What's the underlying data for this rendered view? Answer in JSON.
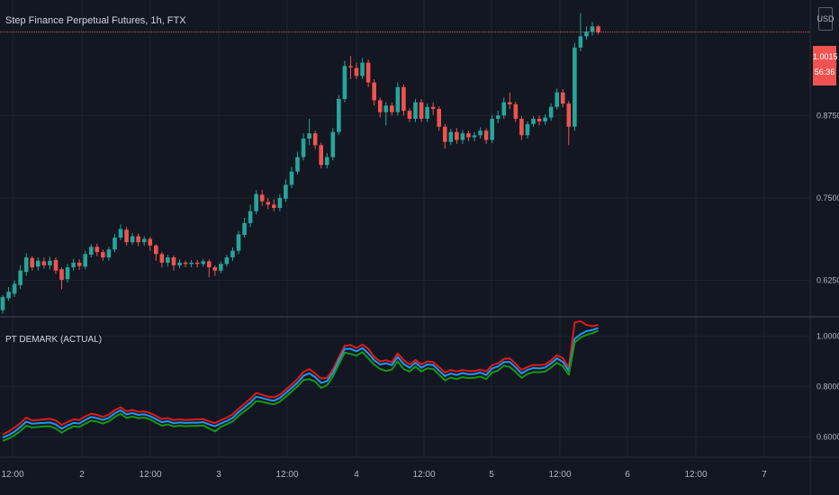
{
  "header": {
    "symbol_title": "Step Finance Perpetual Futures, 1h, FTX",
    "currency": "USD"
  },
  "last_price": {
    "value": "1.0015",
    "countdown": "56:36",
    "color": "#ef5350"
  },
  "indicator": {
    "title": "PT DEMARK (ACTUAL)"
  },
  "colors": {
    "background": "#131722",
    "grid": "#1f2331",
    "up": "#26a69a",
    "down": "#ef5350",
    "text": "#d1d4dc",
    "axis_text": "#b2b5be",
    "line_red": "#e31a1a",
    "line_blue": "#2196f3",
    "line_green": "#139a13"
  },
  "chart_data": [
    {
      "type": "candlestick",
      "title": "Step Finance Perpetual Futures, 1h, FTX",
      "y_ticks": [
        "0.6250",
        "0.7500",
        "0.8750"
      ],
      "y_tick_values": [
        0.625,
        0.75,
        0.875
      ],
      "ylim": [
        0.57,
        1.05
      ],
      "last_value": 1.0015,
      "x_tick_labels": [
        "12:00",
        "2",
        "12:00",
        "3",
        "12:00",
        "4",
        "12:00",
        "5",
        "12:00",
        "6",
        "12:00",
        "7"
      ],
      "note_x_axis": "hourly candles, day boundaries labelled by date",
      "candles": [
        [
          0.58,
          0.6,
          0.575,
          0.603
        ],
        [
          0.598,
          0.608,
          0.594,
          0.615
        ],
        [
          0.605,
          0.62,
          0.6,
          0.625
        ],
        [
          0.618,
          0.64,
          0.612,
          0.648
        ],
        [
          0.638,
          0.66,
          0.632,
          0.666
        ],
        [
          0.659,
          0.645,
          0.64,
          0.662
        ],
        [
          0.646,
          0.655,
          0.64,
          0.66
        ],
        [
          0.654,
          0.648,
          0.643,
          0.66
        ],
        [
          0.648,
          0.655,
          0.642,
          0.661
        ],
        [
          0.656,
          0.64,
          0.635,
          0.66
        ],
        [
          0.642,
          0.626,
          0.612,
          0.645
        ],
        [
          0.627,
          0.645,
          0.622,
          0.65
        ],
        [
          0.645,
          0.652,
          0.64,
          0.658
        ],
        [
          0.652,
          0.647,
          0.641,
          0.657
        ],
        [
          0.646,
          0.665,
          0.642,
          0.67
        ],
        [
          0.664,
          0.676,
          0.66,
          0.68
        ],
        [
          0.676,
          0.668,
          0.662,
          0.681
        ],
        [
          0.668,
          0.66,
          0.655,
          0.672
        ],
        [
          0.66,
          0.672,
          0.655,
          0.676
        ],
        [
          0.672,
          0.69,
          0.668,
          0.696
        ],
        [
          0.69,
          0.703,
          0.686,
          0.71
        ],
        [
          0.702,
          0.683,
          0.678,
          0.706
        ],
        [
          0.683,
          0.692,
          0.679,
          0.697
        ],
        [
          0.692,
          0.683,
          0.677,
          0.696
        ],
        [
          0.683,
          0.688,
          0.678,
          0.692
        ],
        [
          0.688,
          0.678,
          0.67,
          0.691
        ],
        [
          0.678,
          0.665,
          0.655,
          0.68
        ],
        [
          0.665,
          0.652,
          0.645,
          0.668
        ],
        [
          0.652,
          0.66,
          0.646,
          0.664
        ],
        [
          0.66,
          0.648,
          0.64,
          0.663
        ],
        [
          0.648,
          0.652,
          0.644,
          0.657
        ],
        [
          0.652,
          0.65,
          0.645,
          0.655
        ],
        [
          0.65,
          0.652,
          0.645,
          0.656
        ],
        [
          0.652,
          0.65,
          0.645,
          0.656
        ],
        [
          0.65,
          0.654,
          0.646,
          0.658
        ],
        [
          0.654,
          0.645,
          0.63,
          0.657
        ],
        [
          0.645,
          0.64,
          0.632,
          0.648
        ],
        [
          0.64,
          0.65,
          0.636,
          0.654
        ],
        [
          0.65,
          0.66,
          0.646,
          0.664
        ],
        [
          0.66,
          0.67,
          0.655,
          0.675
        ],
        [
          0.67,
          0.695,
          0.665,
          0.7
        ],
        [
          0.694,
          0.712,
          0.69,
          0.72
        ],
        [
          0.712,
          0.73,
          0.706,
          0.74
        ],
        [
          0.73,
          0.756,
          0.725,
          0.762
        ],
        [
          0.755,
          0.745,
          0.738,
          0.762
        ],
        [
          0.744,
          0.74,
          0.733,
          0.75
        ],
        [
          0.74,
          0.735,
          0.73,
          0.748
        ],
        [
          0.735,
          0.75,
          0.73,
          0.756
        ],
        [
          0.749,
          0.77,
          0.744,
          0.778
        ],
        [
          0.77,
          0.79,
          0.765,
          0.797
        ],
        [
          0.79,
          0.812,
          0.786,
          0.82
        ],
        [
          0.812,
          0.84,
          0.807,
          0.848
        ],
        [
          0.84,
          0.848,
          0.83,
          0.87
        ],
        [
          0.848,
          0.83,
          0.824,
          0.852
        ],
        [
          0.83,
          0.8,
          0.795,
          0.834
        ],
        [
          0.8,
          0.812,
          0.795,
          0.818
        ],
        [
          0.812,
          0.85,
          0.807,
          0.856
        ],
        [
          0.85,
          0.9,
          0.845,
          0.906
        ],
        [
          0.9,
          0.95,
          0.895,
          0.958
        ],
        [
          0.95,
          0.948,
          0.93,
          0.965
        ],
        [
          0.947,
          0.935,
          0.93,
          0.955
        ],
        [
          0.935,
          0.955,
          0.93,
          0.962
        ],
        [
          0.955,
          0.925,
          0.918,
          0.96
        ],
        [
          0.925,
          0.898,
          0.89,
          0.93
        ],
        [
          0.898,
          0.88,
          0.872,
          0.902
        ],
        [
          0.88,
          0.89,
          0.86,
          0.895
        ],
        [
          0.89,
          0.88,
          0.875,
          0.895
        ],
        [
          0.88,
          0.918,
          0.875,
          0.925
        ],
        [
          0.918,
          0.882,
          0.875,
          0.922
        ],
        [
          0.882,
          0.87,
          0.865,
          0.886
        ],
        [
          0.87,
          0.895,
          0.865,
          0.9
        ],
        [
          0.895,
          0.87,
          0.865,
          0.9
        ],
        [
          0.87,
          0.888,
          0.865,
          0.893
        ],
        [
          0.888,
          0.885,
          0.876,
          0.895
        ],
        [
          0.885,
          0.858,
          0.852,
          0.889
        ],
        [
          0.858,
          0.835,
          0.825,
          0.862
        ],
        [
          0.835,
          0.85,
          0.83,
          0.855
        ],
        [
          0.85,
          0.838,
          0.832,
          0.856
        ],
        [
          0.838,
          0.848,
          0.832,
          0.853
        ],
        [
          0.848,
          0.842,
          0.836,
          0.852
        ],
        [
          0.842,
          0.845,
          0.836,
          0.85
        ],
        [
          0.845,
          0.852,
          0.84,
          0.857
        ],
        [
          0.852,
          0.838,
          0.832,
          0.856
        ],
        [
          0.838,
          0.87,
          0.833,
          0.876
        ],
        [
          0.87,
          0.875,
          0.863,
          0.882
        ],
        [
          0.875,
          0.895,
          0.87,
          0.902
        ],
        [
          0.895,
          0.892,
          0.885,
          0.91
        ],
        [
          0.892,
          0.87,
          0.865,
          0.896
        ],
        [
          0.87,
          0.845,
          0.838,
          0.874
        ],
        [
          0.845,
          0.862,
          0.84,
          0.866
        ],
        [
          0.862,
          0.87,
          0.858,
          0.874
        ],
        [
          0.87,
          0.866,
          0.86,
          0.875
        ],
        [
          0.866,
          0.872,
          0.861,
          0.877
        ],
        [
          0.872,
          0.888,
          0.867,
          0.893
        ],
        [
          0.888,
          0.91,
          0.884,
          0.916
        ],
        [
          0.91,
          0.893,
          0.887,
          0.915
        ],
        [
          0.893,
          0.858,
          0.83,
          0.897
        ],
        [
          0.858,
          0.978,
          0.852,
          0.985
        ],
        [
          0.978,
          0.995,
          0.972,
          1.03
        ],
        [
          0.995,
          1.002,
          0.99,
          1.01
        ],
        [
          1.002,
          1.01,
          0.996,
          1.017
        ],
        [
          1.01,
          1.001,
          0.998,
          1.012
        ]
      ]
    },
    {
      "type": "line",
      "title": "PT DEMARK (ACTUAL)",
      "y_ticks": [
        "0.6000",
        "0.8000",
        "1.0000"
      ],
      "y_tick_values": [
        0.6,
        0.8,
        1.0
      ],
      "ylim": [
        0.52,
        1.07
      ],
      "series": [
        {
          "color": "#e31a1a",
          "values": [
            0.61,
            0.622,
            0.637,
            0.655,
            0.677,
            0.666,
            0.668,
            0.67,
            0.672,
            0.666,
            0.648,
            0.66,
            0.67,
            0.668,
            0.682,
            0.693,
            0.688,
            0.68,
            0.689,
            0.707,
            0.718,
            0.702,
            0.707,
            0.7,
            0.701,
            0.695,
            0.684,
            0.671,
            0.675,
            0.667,
            0.67,
            0.668,
            0.669,
            0.67,
            0.671,
            0.662,
            0.655,
            0.667,
            0.677,
            0.69,
            0.712,
            0.732,
            0.752,
            0.775,
            0.768,
            0.76,
            0.758,
            0.768,
            0.788,
            0.808,
            0.83,
            0.858,
            0.87,
            0.852,
            0.832,
            0.835,
            0.868,
            0.916,
            0.962,
            0.965,
            0.953,
            0.967,
            0.95,
            0.918,
            0.9,
            0.905,
            0.897,
            0.932,
            0.905,
            0.888,
            0.906,
            0.888,
            0.9,
            0.898,
            0.878,
            0.856,
            0.866,
            0.86,
            0.866,
            0.862,
            0.862,
            0.868,
            0.86,
            0.885,
            0.893,
            0.91,
            0.912,
            0.89,
            0.866,
            0.878,
            0.886,
            0.885,
            0.888,
            0.904,
            0.925,
            0.913,
            0.875,
            1.055,
            1.06,
            1.045,
            1.04,
            1.045
          ]
        },
        {
          "color": "#2196f3",
          "values": [
            0.598,
            0.608,
            0.621,
            0.64,
            0.661,
            0.653,
            0.655,
            0.656,
            0.658,
            0.65,
            0.633,
            0.646,
            0.656,
            0.654,
            0.668,
            0.68,
            0.675,
            0.668,
            0.676,
            0.694,
            0.706,
            0.69,
            0.695,
            0.688,
            0.69,
            0.683,
            0.671,
            0.659,
            0.663,
            0.655,
            0.658,
            0.656,
            0.657,
            0.657,
            0.659,
            0.65,
            0.643,
            0.654,
            0.664,
            0.676,
            0.699,
            0.718,
            0.737,
            0.76,
            0.755,
            0.748,
            0.744,
            0.755,
            0.775,
            0.795,
            0.816,
            0.843,
            0.853,
            0.838,
            0.815,
            0.822,
            0.855,
            0.903,
            0.95,
            0.95,
            0.94,
            0.953,
            0.932,
            0.905,
            0.888,
            0.893,
            0.885,
            0.918,
            0.89,
            0.875,
            0.895,
            0.875,
            0.888,
            0.886,
            0.864,
            0.842,
            0.852,
            0.846,
            0.854,
            0.849,
            0.85,
            0.856,
            0.846,
            0.872,
            0.88,
            0.898,
            0.898,
            0.876,
            0.852,
            0.866,
            0.874,
            0.872,
            0.876,
            0.892,
            0.912,
            0.898,
            0.862,
            0.99,
            1.008,
            1.02,
            1.025,
            1.033
          ]
        },
        {
          "color": "#139a13",
          "values": [
            0.585,
            0.594,
            0.607,
            0.624,
            0.645,
            0.638,
            0.64,
            0.642,
            0.643,
            0.634,
            0.617,
            0.631,
            0.642,
            0.64,
            0.653,
            0.665,
            0.661,
            0.654,
            0.662,
            0.68,
            0.692,
            0.676,
            0.681,
            0.675,
            0.677,
            0.67,
            0.657,
            0.645,
            0.65,
            0.642,
            0.645,
            0.643,
            0.644,
            0.644,
            0.646,
            0.634,
            0.622,
            0.64,
            0.651,
            0.662,
            0.684,
            0.702,
            0.72,
            0.743,
            0.74,
            0.734,
            0.73,
            0.74,
            0.76,
            0.78,
            0.801,
            0.826,
            0.83,
            0.82,
            0.795,
            0.806,
            0.84,
            0.888,
            0.935,
            0.93,
            0.923,
            0.937,
            0.912,
            0.888,
            0.87,
            0.862,
            0.868,
            0.9,
            0.87,
            0.86,
            0.88,
            0.86,
            0.873,
            0.87,
            0.848,
            0.825,
            0.836,
            0.83,
            0.838,
            0.834,
            0.835,
            0.84,
            0.83,
            0.856,
            0.864,
            0.883,
            0.878,
            0.858,
            0.835,
            0.85,
            0.858,
            0.857,
            0.86,
            0.876,
            0.895,
            0.88,
            0.847,
            0.975,
            0.995,
            1.005,
            1.012,
            1.022
          ]
        }
      ]
    }
  ]
}
